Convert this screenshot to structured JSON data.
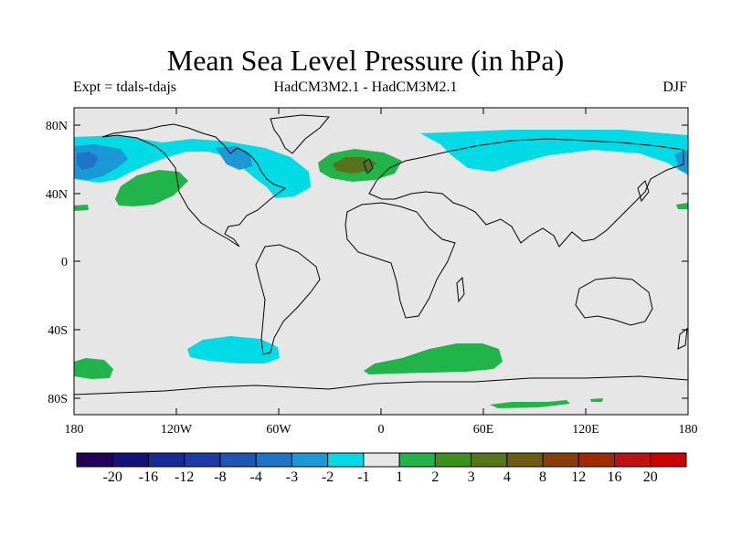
{
  "title": "Mean Sea Level Pressure (in hPa)",
  "experiment_label": "Expt = tdals-tdajs",
  "model_label": "HadCM3M2.1 - HadCM3M2.1",
  "season_label": "DJF",
  "map": {
    "projection": "cylindrical equidistant",
    "longitude_range": [
      -180,
      180
    ],
    "latitude_range": [
      -90,
      90
    ],
    "background_color": "#e6e6e6",
    "coastline_color": "#000000",
    "y_ticks": [
      "80N",
      "40N",
      "0",
      "40S",
      "80S"
    ],
    "x_ticks": [
      "180",
      "120W",
      "60W",
      "0",
      "60E",
      "120E",
      "180"
    ]
  },
  "colorbar": {
    "colors": [
      "#24005a",
      "#15127a",
      "#1a2a96",
      "#1e3aa6",
      "#1f55b6",
      "#1d74c8",
      "#1b98d6",
      "#00dbe6",
      "#e6e6e6",
      "#21b44a",
      "#3e901e",
      "#58741a",
      "#6e5a12",
      "#8a3e0c",
      "#a02a08",
      "#c01210",
      "#cc0000"
    ],
    "tick_labels": [
      "-20",
      "-16",
      "-12",
      "-8",
      "-4",
      "-3",
      "-2",
      "-1",
      "1",
      "2",
      "3",
      "4",
      "8",
      "12",
      "16",
      "20"
    ]
  }
}
